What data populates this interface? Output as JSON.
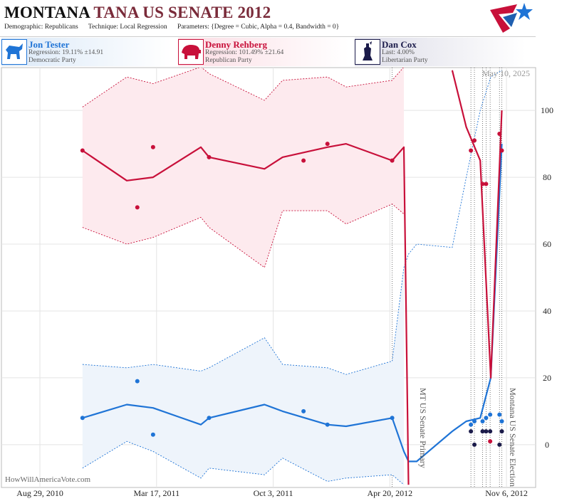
{
  "header": {
    "title_state": "MONTANA",
    "title_rest": "TANA US SENATE 2012",
    "meta": [
      {
        "label": "Demographic:",
        "value": "Republicans"
      },
      {
        "label": "Technique:",
        "value": "Local Regression"
      },
      {
        "label": "Parameters:",
        "value": "{Degree = Cubic, Alpha = 0.4, Bandwidth = 0}"
      }
    ]
  },
  "date_stamp": "May 10, 2025",
  "watermark": "HowWillAmericaVote.com",
  "chart_data": {
    "type": "line",
    "x": [
      "2010-11-10",
      "2011-02-12",
      "2011-03-11",
      "2011-06-15",
      "2011-11-24",
      "2012-01-04",
      "2012-04-24",
      "2012-09-06",
      "2012-09-12",
      "2012-09-26",
      "2012-10-02",
      "2012-10-09",
      "2012-10-25",
      "2012-10-29"
    ],
    "trend_x": [
      "2010-11-10",
      "2011-01-25",
      "2011-03-11",
      "2011-06-01",
      "2011-06-15",
      "2011-09-18",
      "2011-10-19",
      "2012-01-04",
      "2012-02-05",
      "2012-04-24",
      "2012-05-14",
      "2012-05-22",
      "2012-06-05",
      "2012-08-05",
      "2012-08-29",
      "2012-09-22",
      "2012-10-10",
      "2012-10-29"
    ],
    "series": [
      {
        "name": "Jon Tester",
        "summary": "Regression: 19.11% ±14.91",
        "party": "Democratic Party",
        "color": "#1f74d6",
        "band_color": "#eef4fb",
        "values": [
          8,
          19,
          3,
          8,
          10,
          6,
          8,
          6,
          7,
          7,
          8,
          9,
          9,
          7
        ],
        "trend": [
          8,
          12,
          11,
          6,
          8,
          12,
          10,
          6,
          5.5,
          8,
          -2,
          -5,
          -5,
          4,
          7,
          8,
          20,
          90
        ],
        "trend_upper": [
          24,
          23,
          24,
          22,
          23,
          32,
          24,
          23,
          21,
          25,
          53,
          57,
          60,
          59,
          80,
          100,
          110,
          112
        ],
        "trend_lower": [
          -7,
          1,
          -2,
          -10,
          -7,
          -9,
          -4,
          -11,
          -10,
          -9,
          -12,
          null,
          null,
          null,
          null,
          null,
          null,
          null
        ]
      },
      {
        "name": "Denny Rehberg",
        "summary": "Regression: 101.49% ±21.64",
        "party": "Republican Party",
        "color": "#c8103a",
        "band_color": "#fdeaee",
        "values": [
          88,
          71,
          89,
          86,
          85,
          90,
          85,
          88,
          91,
          78,
          78,
          1,
          93,
          88
        ],
        "trend": [
          88,
          79,
          80,
          89,
          86,
          82.5,
          86,
          89,
          90,
          85,
          89,
          -12,
          null,
          112,
          95,
          85,
          20,
          100
        ],
        "trend_upper": [
          101,
          110,
          108,
          113,
          111,
          103,
          109,
          110,
          107,
          109,
          113,
          null,
          null,
          null,
          null,
          null,
          null,
          null
        ],
        "trend_lower": [
          65,
          60,
          62,
          68,
          65,
          53,
          70,
          70,
          66,
          72,
          69,
          null,
          null,
          null,
          null,
          null,
          null,
          null
        ]
      },
      {
        "name": "Dan Cox",
        "summary": "Last: 4.00%",
        "party": "Libertarian Party",
        "color": "#1b1b4a",
        "values": [
          null,
          null,
          null,
          null,
          null,
          null,
          null,
          4,
          0,
          4,
          4,
          4,
          0,
          4
        ]
      }
    ],
    "annotations": [
      {
        "text": "MT US Senate Primary",
        "x": "2012-06-05"
      },
      {
        "text": "Montana US Senate Election",
        "x": "2012-11-06"
      }
    ],
    "xlim": [
      "2010-06-24",
      "2012-12-26"
    ],
    "xticks": [
      {
        "value": "2010-08-29",
        "label": "Aug 29, 2010"
      },
      {
        "value": "2011-03-17",
        "label": "Mar 17, 2011"
      },
      {
        "value": "2011-10-03",
        "label": "Oct 3, 2011"
      },
      {
        "value": "2012-04-20",
        "label": "Apr 20, 2012"
      },
      {
        "value": "2012-11-06",
        "label": "Nov 6, 2012"
      }
    ],
    "ylim": [
      -12.8,
      112.8
    ],
    "yticks": [
      0,
      20,
      40,
      60,
      80,
      100
    ],
    "grid": true
  }
}
